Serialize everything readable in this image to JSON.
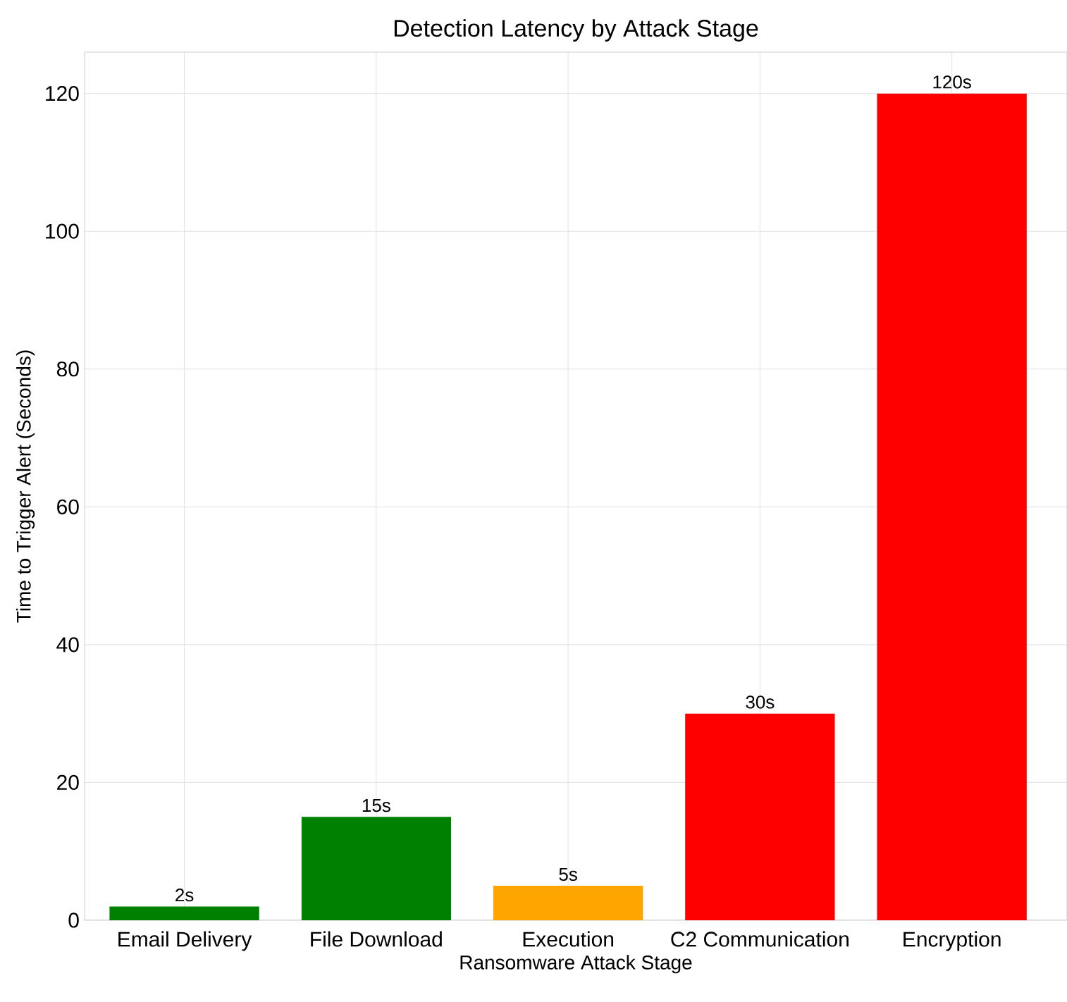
{
  "chart_data": {
    "type": "bar",
    "title": "Detection Latency by Attack Stage",
    "xlabel": "Ransomware Attack Stage",
    "ylabel": "Time to Trigger Alert (Seconds)",
    "categories": [
      "Email Delivery",
      "File Download",
      "Execution",
      "C2 Communication",
      "Encryption"
    ],
    "values": [
      2,
      15,
      5,
      30,
      120
    ],
    "value_labels": [
      "2s",
      "15s",
      "5s",
      "30s",
      "120s"
    ],
    "colors": [
      "#008000",
      "#008000",
      "#ffa500",
      "#ff0000",
      "#ff0000"
    ],
    "ylim": [
      0,
      126
    ],
    "yticks": [
      0,
      20,
      40,
      60,
      80,
      100,
      120
    ],
    "grid": true
  }
}
